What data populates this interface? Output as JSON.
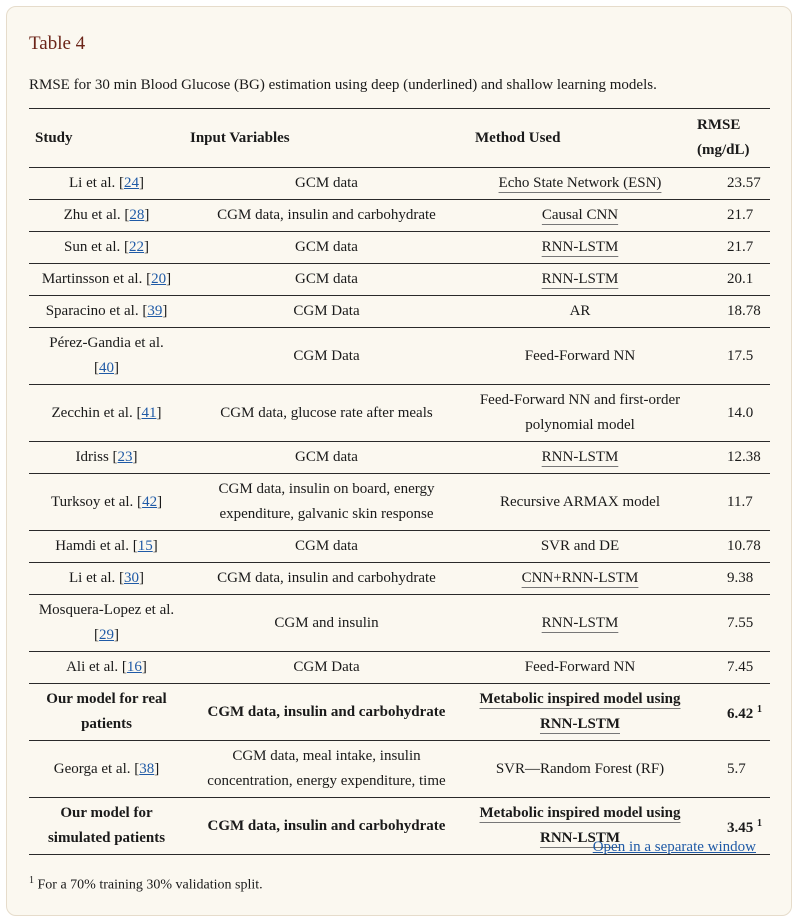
{
  "title": "Table 4",
  "caption": "RMSE for 30 min Blood Glucose (BG) estimation using deep (underlined) and shallow learning models.",
  "headers": {
    "study": "Study",
    "input": "Input Variables",
    "method": "Method Used",
    "rmse": "RMSE",
    "rmse_unit": "(mg/dL)"
  },
  "rows": [
    {
      "study": "Li et al. [",
      "ref": "24",
      "close": "]",
      "input": "GCM data",
      "method": "Echo State Network (ESN)",
      "rmse": "23.57"
    },
    {
      "study": "Zhu et al. [",
      "ref": "28",
      "close": "]",
      "input": "CGM data, insulin and carbohydrate",
      "method": "Causal CNN",
      "rmse": "21.7"
    },
    {
      "study": "Sun et al. [",
      "ref": "22",
      "close": "]",
      "input": "GCM data",
      "method": "RNN-LSTM",
      "rmse": "21.7"
    },
    {
      "study": "Martinsson et al. [",
      "ref": "20",
      "close": "]",
      "input": "GCM data",
      "method": "RNN-LSTM",
      "rmse": "20.1"
    },
    {
      "study": "Sparacino et al. [",
      "ref": "39",
      "close": "]",
      "input": "CGM Data",
      "method": "AR",
      "rmse": "18.78"
    },
    {
      "study": "Pérez-Gandia et al. [",
      "ref": "40",
      "close": "]",
      "input": "CGM Data",
      "method": "Feed-Forward NN",
      "rmse": "17.5"
    },
    {
      "study": "Zecchin et al. [",
      "ref": "41",
      "close": "]",
      "input": "CGM data, glucose rate after meals",
      "method": "Feed-Forward NN and first-order polynomial model",
      "rmse": "14.0"
    },
    {
      "study": "Idriss [",
      "ref": "23",
      "close": "]",
      "input": "GCM data",
      "method": "RNN-LSTM",
      "rmse": "12.38"
    },
    {
      "study": "Turksoy et al. [",
      "ref": "42",
      "close": "]",
      "input": "CGM data, insulin on board, energy expenditure, galvanic skin response",
      "method": "Recursive ARMAX model",
      "rmse": "11.7"
    },
    {
      "study": "Hamdi et al. [",
      "ref": "15",
      "close": "]",
      "input": "CGM data",
      "method": "SVR and DE",
      "rmse": "10.78"
    },
    {
      "study": "Li et al. [",
      "ref": "30",
      "close": "]",
      "input": "CGM data, insulin and carbohydrate",
      "method": "CNN+RNN-LSTM",
      "rmse": "9.38"
    },
    {
      "study": "Mosquera-Lopez et al. [",
      "ref": "29",
      "close": "]",
      "input": "CGM and insulin",
      "method": "RNN-LSTM",
      "rmse": "7.55"
    },
    {
      "study": "Ali et al. [",
      "ref": "16",
      "close": "]",
      "input": "CGM Data",
      "method": "Feed-Forward NN",
      "rmse": "7.45"
    },
    {
      "study": "Our model for real patients",
      "input": "CGM data, insulin and carbohydrate",
      "method_line1": "Metabolic inspired model using",
      "method_line2": "RNN-LSTM",
      "rmse": "6.42",
      "sup": "1"
    },
    {
      "study": "Georga et al. [",
      "ref": "38",
      "close": "]",
      "input": "CGM data, meal intake, insulin concentration, energy expenditure, time",
      "method": "SVR—Random Forest (RF)",
      "rmse": "5.7"
    },
    {
      "study": "Our model for simulated patients",
      "input": "CGM data, insulin and carbohydrate",
      "method_line1": "Metabolic inspired model using",
      "method_line2": "RNN-LSTM",
      "rmse": "3.45",
      "sup": "1"
    }
  ],
  "open_link": "Open in a separate window",
  "footnote": {
    "mark": "1",
    "text": " For a 70% training 30% validation split."
  }
}
